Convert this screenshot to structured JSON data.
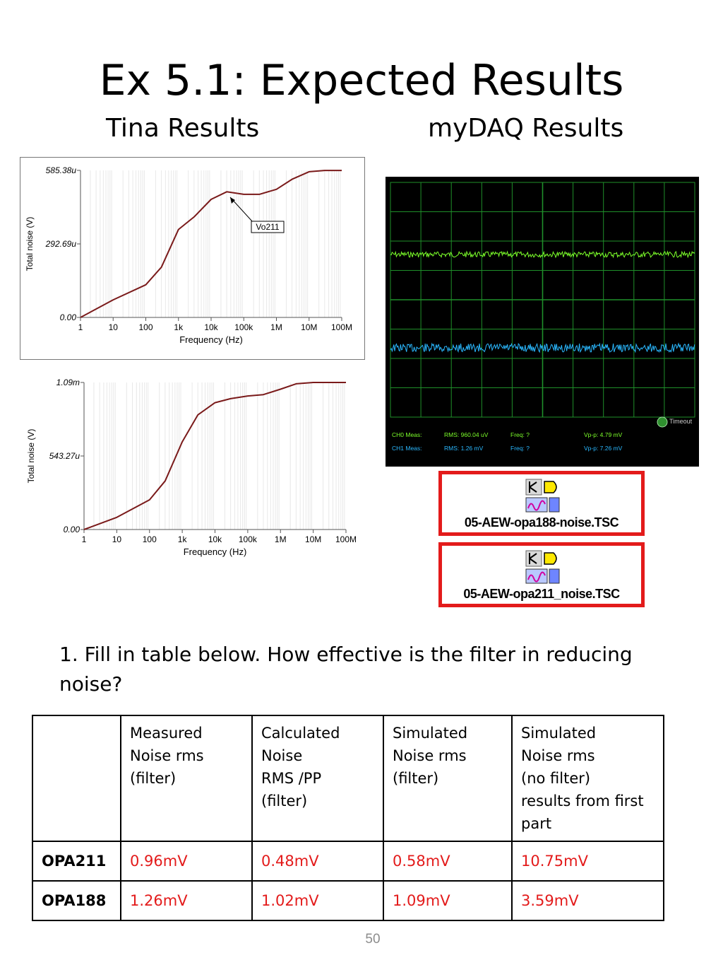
{
  "page": {
    "title": "Ex 5.1: Expected Results",
    "subtitle_left": "Tina Results",
    "subtitle_right": "myDAQ Results",
    "page_number": "50"
  },
  "question": "1.  Fill in table below.  How effective is the filter in reducing noise?",
  "chart_data": [
    {
      "type": "line",
      "ylabel": "Total noise (V)",
      "xlabel": "Frequency (Hz)",
      "xscale": "log",
      "x_ticks": [
        "1",
        "10",
        "100",
        "1k",
        "10k",
        "100k",
        "1M",
        "10M",
        "100M"
      ],
      "y_ticks": [
        "0.00",
        "292.69u",
        "585.38u"
      ],
      "ylim_V": [
        0,
        0.00058538
      ],
      "annotation": "Vo211",
      "series": [
        {
          "color": "#7a1a1a",
          "x": [
            1,
            10,
            100,
            300,
            1000,
            3000,
            10000,
            30000,
            100000,
            300000,
            1000000,
            3000000,
            10000000,
            30000000,
            100000000
          ],
          "y": [
            0.0,
            7e-05,
            0.00013,
            0.0002,
            0.00035,
            0.0004,
            0.00047,
            0.0005,
            0.00049,
            0.00049,
            0.00051,
            0.00055,
            0.00058,
            0.000585,
            0.000585
          ]
        }
      ],
      "grid": true
    },
    {
      "type": "line",
      "ylabel": "Total noise (V)",
      "xlabel": "Frequency (Hz)",
      "xscale": "log",
      "x_ticks": [
        "1",
        "10",
        "100",
        "1k",
        "10k",
        "100k",
        "1M",
        "10M",
        "100M"
      ],
      "y_ticks": [
        "0.00",
        "543.27u",
        "1.09m"
      ],
      "ylim_V": [
        0,
        0.00109
      ],
      "series": [
        {
          "color": "#7a1a1a",
          "x": [
            1,
            10,
            100,
            300,
            1000,
            3000,
            10000,
            30000,
            100000,
            300000,
            1000000,
            3000000,
            10000000,
            30000000,
            100000000
          ],
          "y": [
            0.0,
            9e-05,
            0.00022,
            0.00036,
            0.00065,
            0.00085,
            0.00094,
            0.00097,
            0.00099,
            0.001,
            0.00104,
            0.00108,
            0.00109,
            0.00109,
            0.00109
          ]
        }
      ],
      "grid": true
    }
  ],
  "scope": {
    "ch0_label": "CH0 Meas:",
    "ch0_rms": "RMS:  960.04 uV",
    "ch0_freq": "Freq:  ?",
    "ch0_vpp": "Vp-p:  4.79 mV",
    "ch1_label": "CH1 Meas:",
    "ch1_rms": "RMS:  1.26 mV",
    "ch1_freq": "Freq:  ?",
    "ch1_vpp": "Vp-p:  7.26 mV",
    "timeout": "Timeout",
    "ch0_color": "#7cff2a",
    "ch1_color": "#2ab8ff"
  },
  "files": [
    {
      "name": "05-AEW-opa188-noise.TSC"
    },
    {
      "name": "05-AEW-opa211_noise.TSC"
    }
  ],
  "table": {
    "headers": [
      "",
      "Measured\nNoise rms\n(filter)",
      "Calculated\nNoise\nRMS /PP\n(filter)",
      "Simulated\nNoise rms\n(filter)",
      "Simulated\nNoise rms\n(no filter)\nresults from first\npart"
    ],
    "rows": [
      {
        "name": "OPA211",
        "values": [
          "0.96mV",
          "0.48mV",
          "0.58mV",
          "10.75mV"
        ]
      },
      {
        "name": "OPA188",
        "values": [
          "1.26mV",
          "1.02mV",
          "1.09mV",
          "3.59mV"
        ]
      }
    ]
  }
}
